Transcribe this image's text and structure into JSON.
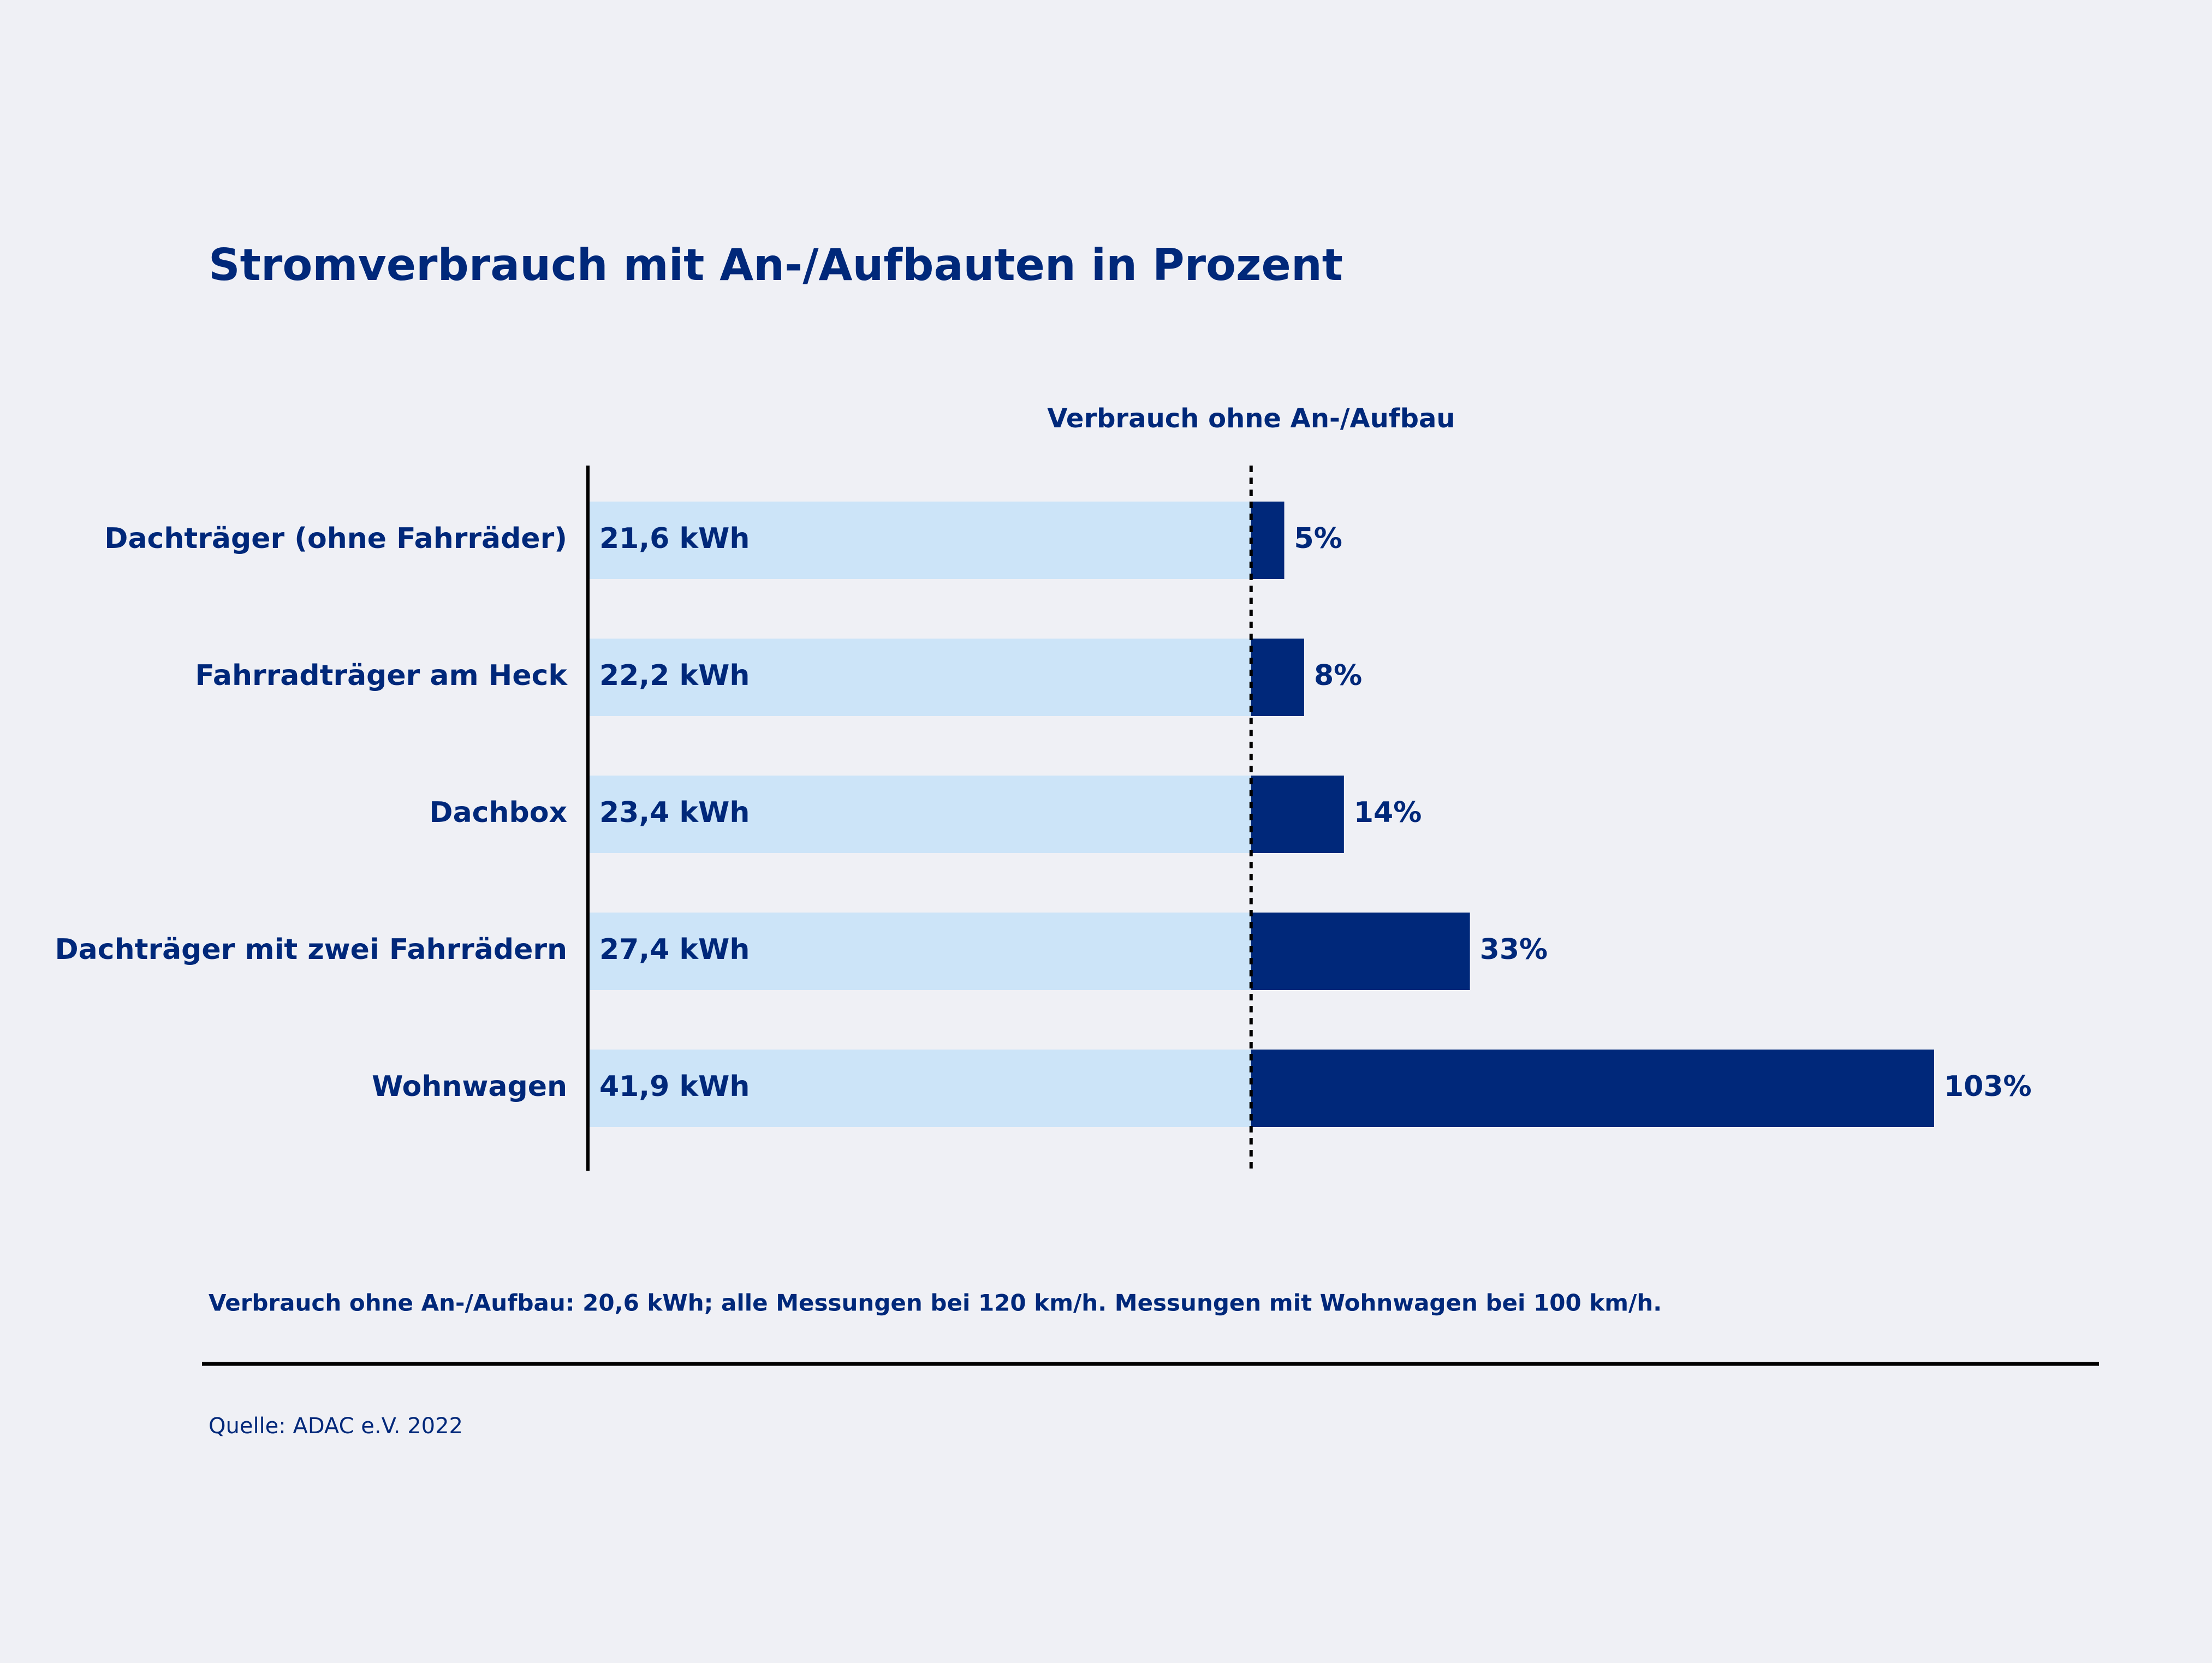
{
  "chart_data": {
    "type": "bar",
    "orientation": "horizontal",
    "title": "Stromverbrauch mit An-/Aufbauten in Prozent",
    "reference_label": "Verbrauch ohne An-/Aufbau",
    "categories": [
      "Dachträger (ohne Fahrräder)",
      "Fahrradträger am Heck",
      "Dachbox",
      "Dachträger mit zwei Fahrrädern",
      "Wohnwagen"
    ],
    "consumption_labels": [
      "21,6 kWh",
      "22,2 kWh",
      "23,4 kWh",
      "27,4 kWh",
      "41,9 kWh"
    ],
    "values": [
      5,
      8,
      14,
      33,
      103
    ],
    "value_labels": [
      "5%",
      "8%",
      "14%",
      "33%",
      "103%"
    ],
    "color": "#00287a",
    "base_color": "#cce4f8",
    "xlim": [
      -100,
      103
    ],
    "footnote": "Verbrauch ohne An-/Aufbau: 20,6 kWh; alle Messungen bei 120 km/h. Messungen mit Wohnwagen bei 100 km/h.",
    "source": "Quelle: ADAC e.V. 2022"
  }
}
